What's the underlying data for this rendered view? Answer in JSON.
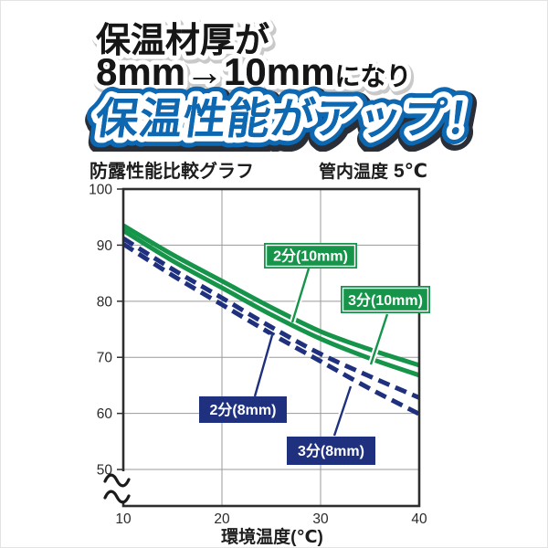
{
  "window": {
    "background": "#ffffff"
  },
  "header": {
    "line1": "保温材厚が",
    "line2_big": "8mm→10mm",
    "line2_small": "になり",
    "line3": "保温性能がアップ！",
    "text_color": "#161616",
    "accent_blue": "#0d68b1",
    "shadow_dark": "#2a2e36"
  },
  "chart_data": {
    "type": "line",
    "title": "防露性能比較グラフ",
    "subtitle": {
      "label": "管内温度",
      "value": "5℃"
    },
    "xlabel": "環境温度(℃)",
    "ylabel": "",
    "x": [
      10,
      15,
      20,
      25,
      30,
      35,
      40
    ],
    "xticks": [
      10,
      20,
      30,
      40
    ],
    "yticks": [
      100,
      90,
      80,
      70,
      60,
      50
    ],
    "xlim": [
      10,
      40
    ],
    "ylim": [
      50,
      100
    ],
    "axis_break": true,
    "grid": true,
    "legend_position": "inline-callouts",
    "frame_color": "#2e2e2e",
    "grid_color": "#9a9a9a",
    "tick_label_color": "#2a2a2a",
    "series": [
      {
        "name": "2分(10mm)",
        "color": "#16944a",
        "style": "solid",
        "values": [
          93.5,
          88.3,
          83.6,
          78.9,
          74.6,
          71.4,
          68.6
        ]
      },
      {
        "name": "3分(10mm)",
        "color": "#16944a",
        "style": "solid",
        "values": [
          92.6,
          87.2,
          82.4,
          77.6,
          73.3,
          69.8,
          66.8
        ]
      },
      {
        "name": "2分(8mm)",
        "color": "#1e307e",
        "style": "dashed",
        "values": [
          91.2,
          85.7,
          80.6,
          75.4,
          70.6,
          66.6,
          62.8
        ]
      },
      {
        "name": "3分(8mm)",
        "color": "#1e307e",
        "style": "dashed",
        "values": [
          90.2,
          84.6,
          79.4,
          74.2,
          69.3,
          64.4,
          59.9
        ]
      }
    ]
  }
}
